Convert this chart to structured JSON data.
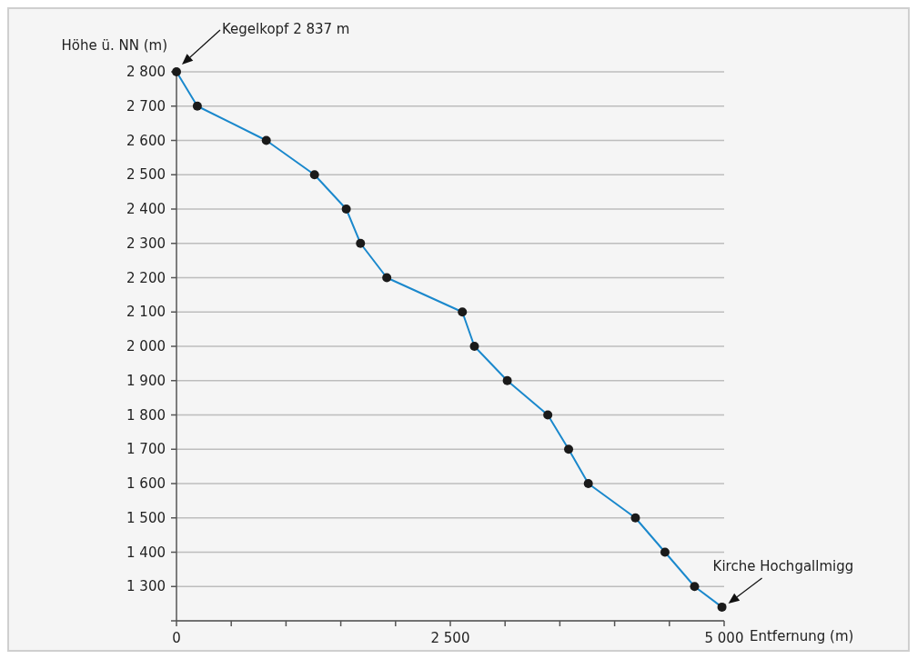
{
  "chart_data": {
    "type": "line",
    "xlabel": "Entfernung (m)",
    "ylabel": "Höhe ü. NN (m)",
    "x": [
      0,
      190,
      820,
      1260,
      1550,
      1680,
      1920,
      2610,
      2720,
      3020,
      3390,
      3580,
      3760,
      4190,
      4460,
      4730,
      4980
    ],
    "series": [
      {
        "color": "#1a88cc",
        "values": [
          2800,
          2700,
          2600,
          2500,
          2400,
          2300,
          2200,
          2100,
          2000,
          1900,
          1800,
          1700,
          1600,
          1500,
          1400,
          1300,
          1240
        ]
      }
    ],
    "xlim": [
      0,
      5000
    ],
    "xticks": [
      {
        "value": 0,
        "label": "0"
      },
      {
        "value": 500,
        "label": null
      },
      {
        "value": 1000,
        "label": null
      },
      {
        "value": 1500,
        "label": null
      },
      {
        "value": 2000,
        "label": null
      },
      {
        "value": 2500,
        "label": "2 500"
      },
      {
        "value": 3000,
        "label": null
      },
      {
        "value": 3500,
        "label": null
      },
      {
        "value": 4000,
        "label": null
      },
      {
        "value": 4500,
        "label": null
      },
      {
        "value": 5000,
        "label": "5 000"
      }
    ],
    "ylim": [
      1200,
      2800
    ],
    "yticks": [
      {
        "value": 1200,
        "label": null
      },
      {
        "value": 1300,
        "label": "1 300"
      },
      {
        "value": 1400,
        "label": "1 400"
      },
      {
        "value": 1500,
        "label": "1 500"
      },
      {
        "value": 1600,
        "label": "1 600"
      },
      {
        "value": 1700,
        "label": "1 700"
      },
      {
        "value": 1800,
        "label": "1 800"
      },
      {
        "value": 1900,
        "label": "1 900"
      },
      {
        "value": 2000,
        "label": "2 000"
      },
      {
        "value": 2100,
        "label": "2 100"
      },
      {
        "value": 2200,
        "label": "2 200"
      },
      {
        "value": 2300,
        "label": "2 300"
      },
      {
        "value": 2400,
        "label": "2 400"
      },
      {
        "value": 2500,
        "label": "2 500"
      },
      {
        "value": 2600,
        "label": "2 600"
      },
      {
        "value": 2700,
        "label": "2 700"
      },
      {
        "value": 2800,
        "label": "2 800"
      }
    ],
    "grid": "y",
    "marker": "circle",
    "line_style": "solid",
    "annotations": [
      "Kegelkopf 2 837 m",
      {
        "text": "Kirche Hochgallmigg",
        "x": 4980,
        "y": 1240
      }
    ]
  }
}
